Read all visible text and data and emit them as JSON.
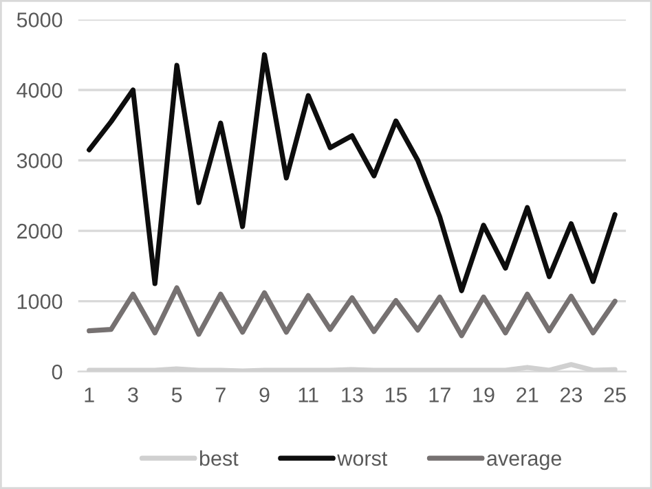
{
  "chart_data": {
    "type": "line",
    "categories": [
      "1",
      null,
      "3",
      null,
      "5",
      null,
      "7",
      null,
      "9",
      null,
      "11",
      null,
      "13",
      null,
      "15",
      null,
      "17",
      null,
      "19",
      null,
      "21",
      null,
      "23",
      null,
      "25"
    ],
    "series": [
      {
        "name": "best",
        "color": "#d0d0d0",
        "values": [
          20,
          20,
          20,
          20,
          40,
          20,
          20,
          10,
          20,
          20,
          20,
          20,
          30,
          20,
          20,
          20,
          20,
          20,
          20,
          20,
          60,
          20,
          100,
          20,
          30
        ]
      },
      {
        "name": "worst",
        "color": "#0d0d0d",
        "values": [
          3150,
          3550,
          4000,
          1250,
          4350,
          2400,
          3530,
          2060,
          4500,
          2750,
          3920,
          3180,
          3350,
          2780,
          3560,
          3000,
          2200,
          1150,
          2080,
          1470,
          2330,
          1350,
          2100,
          1280,
          2230
        ]
      },
      {
        "name": "average",
        "color": "#767171",
        "values": [
          580,
          600,
          1100,
          550,
          1190,
          530,
          1100,
          560,
          1120,
          560,
          1080,
          600,
          1050,
          570,
          1010,
          590,
          1060,
          510,
          1060,
          550,
          1100,
          580,
          1070,
          550,
          1000
        ]
      }
    ],
    "ylim": [
      0,
      5000
    ],
    "yticks": [
      0,
      1000,
      2000,
      3000,
      4000,
      5000
    ],
    "grid": "y",
    "legend": "bottom",
    "marker": "none",
    "line_style": "solid"
  }
}
